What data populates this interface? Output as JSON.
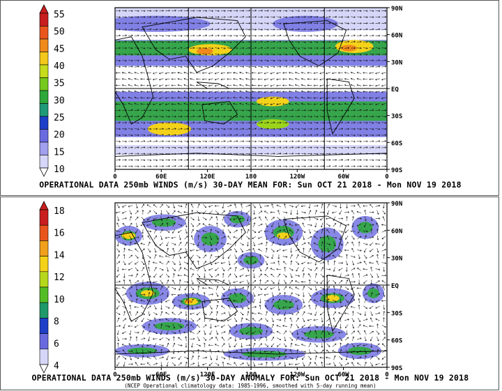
{
  "panels": [
    {
      "id": "mean",
      "colorbar": {
        "labels": [
          "55",
          "50",
          "45",
          "40",
          "35",
          "30",
          "25",
          "20",
          "15",
          "10"
        ],
        "colors": [
          "#c81e1e",
          "#e8561c",
          "#f08a1c",
          "#f4c81a",
          "#c6dc1c",
          "#74c81e",
          "#2ea83a",
          "#1e9a78",
          "#1e3fc8",
          "#6a6ae0",
          "#a0a0ee",
          "#d6d6f8"
        ]
      },
      "lat_labels": [
        "90N",
        "60N",
        "30N",
        "EQ",
        "30S",
        "60S",
        "90S"
      ],
      "lon_labels": [
        "0",
        "60E",
        "120E",
        "180",
        "120W",
        "60W",
        "0"
      ],
      "caption": "OPERATIONAL DATA 250mb WINDS (m/s) 30-DAY MEAN FOR: Sun OCT 21 2018 - Mon NOV 19 2018"
    },
    {
      "id": "anomaly",
      "colorbar": {
        "labels": [
          "18",
          "16",
          "14",
          "12",
          "10",
          "8",
          "6",
          "4"
        ],
        "colors": [
          "#c81e1e",
          "#e8561c",
          "#f0a01c",
          "#f4d21a",
          "#b6d81c",
          "#54bc24",
          "#1e9a6a",
          "#1e3fc8",
          "#6a6ae0",
          "#d6d6f8"
        ]
      },
      "lat_labels": [
        "90N",
        "60N",
        "30N",
        "EQ",
        "30S",
        "60S",
        "90S"
      ],
      "lon_labels": [
        "0",
        "60E",
        "120E",
        "180",
        "120W",
        "60W",
        "0"
      ],
      "caption": "OPERATIONAL DATA 250mb WINDS (m/s) 30-DAY ANOMALY FOR: Sun OCT 21 2018 - Mon NOV 19 2018",
      "note": "(NCEP Operational climatology data: 1985-1996, smoothed with 5-day running mean)"
    }
  ],
  "map_colors": {
    "ocean_bg": "#ffffff",
    "low": "#d6d6f8",
    "mid": "#6a6ae0",
    "blue": "#1e3fc8",
    "green": "#2ea83a",
    "lime": "#9cd41c",
    "yellow": "#f4d21a",
    "orange": "#f08a1c",
    "coast": "#000000"
  }
}
